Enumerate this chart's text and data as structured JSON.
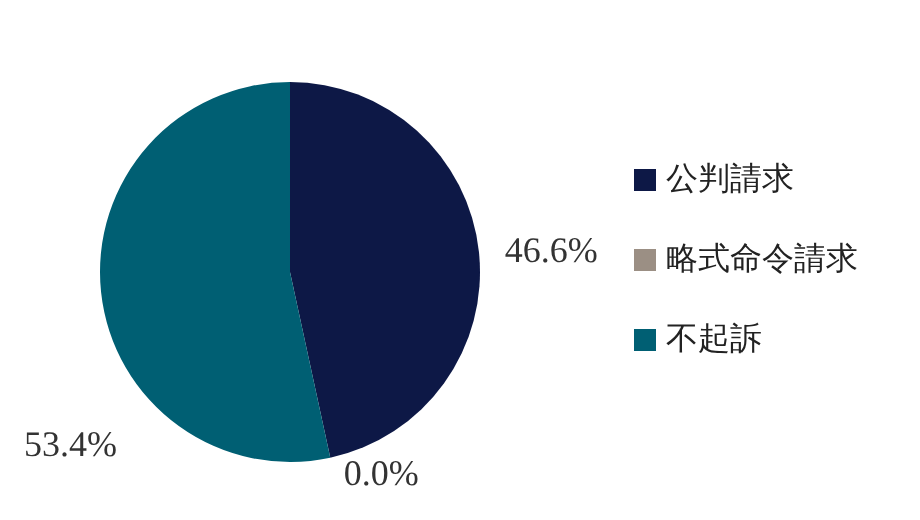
{
  "chart_data": {
    "type": "pie",
    "categories": [
      "公判請求",
      "略式命令請求",
      "不起訴"
    ],
    "values": [
      46.6,
      0.0,
      53.4
    ],
    "colors": [
      "#0d1846",
      "#9b8f84",
      "#005f73"
    ],
    "value_labels": [
      "46.6%",
      "0.0%",
      "53.4%"
    ],
    "legend": "right"
  }
}
